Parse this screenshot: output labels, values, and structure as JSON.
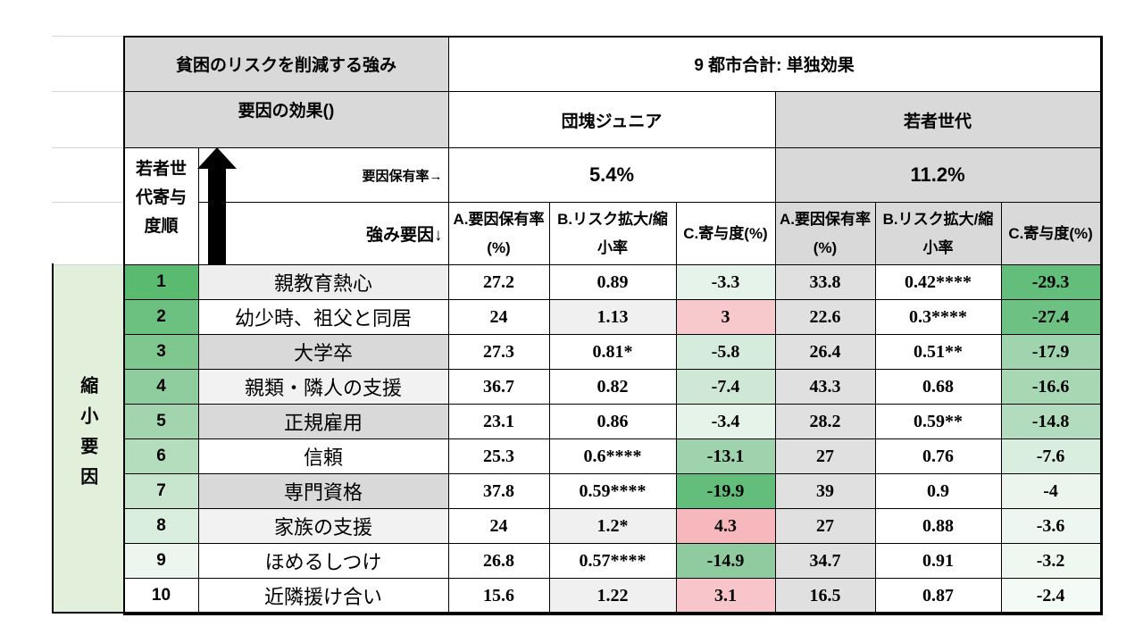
{
  "header": {
    "title": "貧困のリスクを削減する強み",
    "subtitle": "要因の効果()",
    "group_title": "9 都市合計: 単独効果",
    "rank_label": "若者世代寄与度順",
    "rate_label": "要因保有率→",
    "factor_label": "強み要因↓",
    "groups": [
      {
        "name": "団塊ジュニア",
        "rate": "5.4%"
      },
      {
        "name": "若者世代",
        "rate": "11.2%"
      }
    ],
    "columns": [
      "A.要因保有率(%)",
      "B.リスク拡大/縮小率",
      "C.寄与度(%)"
    ]
  },
  "table": {
    "section": "縮小要因",
    "rows": [
      [
        1,
        "親教育熱心",
        27.2,
        0.89,
        -3.3,
        33.8,
        "0.42****",
        -29.3
      ],
      [
        2,
        "幼少時、祖父と同居",
        24,
        1.13,
        3,
        22.6,
        "0.3****",
        -27.4
      ],
      [
        3,
        "大学卒",
        27.3,
        "0.81*",
        -5.8,
        26.4,
        "0.51**",
        -17.9
      ],
      [
        4,
        "親類・隣人の支援",
        36.7,
        0.82,
        -7.4,
        43.3,
        0.68,
        -16.6
      ],
      [
        5,
        "正規雇用",
        23.1,
        0.86,
        -3.4,
        28.2,
        "0.59**",
        -14.8
      ],
      [
        6,
        "信頼",
        25.3,
        "0.6****",
        -13.1,
        27,
        0.76,
        -7.6
      ],
      [
        7,
        "専門資格",
        37.8,
        "0.59****",
        -19.9,
        39,
        0.9,
        -4
      ],
      [
        8,
        "家族の支援",
        24,
        "1.2*",
        4.3,
        27,
        0.88,
        -3.6
      ],
      [
        9,
        "ほめるしつけ",
        26.8,
        "0.57****",
        -14.9,
        34.7,
        0.91,
        -3.2
      ],
      [
        10,
        "近隣援け合い",
        15.6,
        1.22,
        3.1,
        16.5,
        0.87,
        -2.4
      ]
    ]
  }
}
